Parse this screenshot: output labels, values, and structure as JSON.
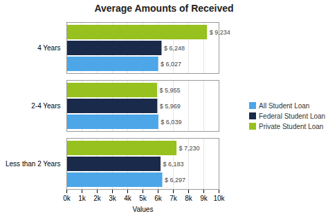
{
  "chart_data": {
    "type": "bar",
    "orientation": "horizontal",
    "title": "Average Amounts of Received",
    "xlabel": "Values",
    "categories": [
      "4 Years",
      "2-4 Years",
      "Less than 2 Years"
    ],
    "series": [
      {
        "name": "All Student Loan",
        "color": "#4da6e8",
        "values": [
          6027,
          6039,
          6297
        ],
        "value_labels": [
          "$ 6,027",
          "$ 6,039",
          "$ 6,297"
        ]
      },
      {
        "name": "Federal Student Loan",
        "color": "#1a2a4a",
        "values": [
          6248,
          5969,
          6183
        ],
        "value_labels": [
          "$ 6,248",
          "$ 5,969",
          "$ 6,183"
        ]
      },
      {
        "name": "Private Student Loan",
        "color": "#96c11f",
        "values": [
          9234,
          5955,
          7230
        ],
        "value_labels": [
          "$ 9,234",
          "$ 5,955",
          "$ 7,230"
        ]
      }
    ],
    "xlim": [
      0,
      10000
    ],
    "xticks": [
      {
        "value": 0,
        "label": "0k"
      },
      {
        "value": 1000,
        "label": "1k"
      },
      {
        "value": 2000,
        "label": "2k"
      },
      {
        "value": 3000,
        "label": "3k"
      },
      {
        "value": 4000,
        "label": "4k"
      },
      {
        "value": 5000,
        "label": "5k"
      },
      {
        "value": 6000,
        "label": "6k"
      },
      {
        "value": 7000,
        "label": "7k"
      },
      {
        "value": 8000,
        "label": "8k"
      },
      {
        "value": 9000,
        "label": "9k"
      },
      {
        "value": 10000,
        "label": "10k"
      }
    ],
    "grid": true,
    "legend": "right",
    "data_labels": true
  }
}
